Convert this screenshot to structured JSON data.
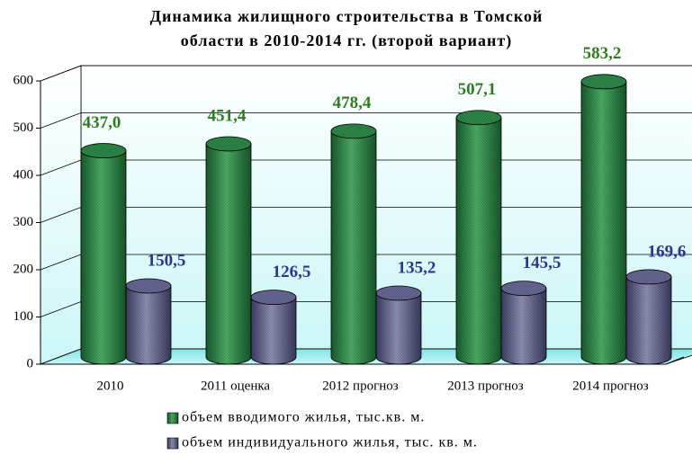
{
  "chart_data": {
    "type": "bar3d",
    "title": [
      "Динамика жилищного строительства в Томской",
      "области в 2010-2014 гг. (второй вариант)"
    ],
    "categories": [
      "2010",
      "2011 оценка",
      "2012 прогноз",
      "2013 прогноз",
      "2014 прогноз"
    ],
    "series": [
      {
        "name": "объем вводимого жилья, тыс.кв. м.",
        "color": "#2e8b4a",
        "label_color": "#2e7d1f",
        "values": [
          437.0,
          451.4,
          478.4,
          507.1,
          583.2
        ],
        "value_labels": [
          "437,0",
          "451,4",
          "478,4",
          "507,1",
          "583,2"
        ]
      },
      {
        "name": "объем индивидуального жилья, тыс. кв. м.",
        "color": "#6a6a98",
        "label_color": "#2b3494",
        "values": [
          150.5,
          126.5,
          135.2,
          145.5,
          169.6
        ],
        "value_labels": [
          "150,5",
          "126,5",
          "135,2",
          "145,5",
          "169,6"
        ]
      }
    ],
    "ylim": [
      0,
      600
    ],
    "yticks": [
      0,
      100,
      200,
      300,
      400,
      500,
      600
    ],
    "grid": true
  }
}
